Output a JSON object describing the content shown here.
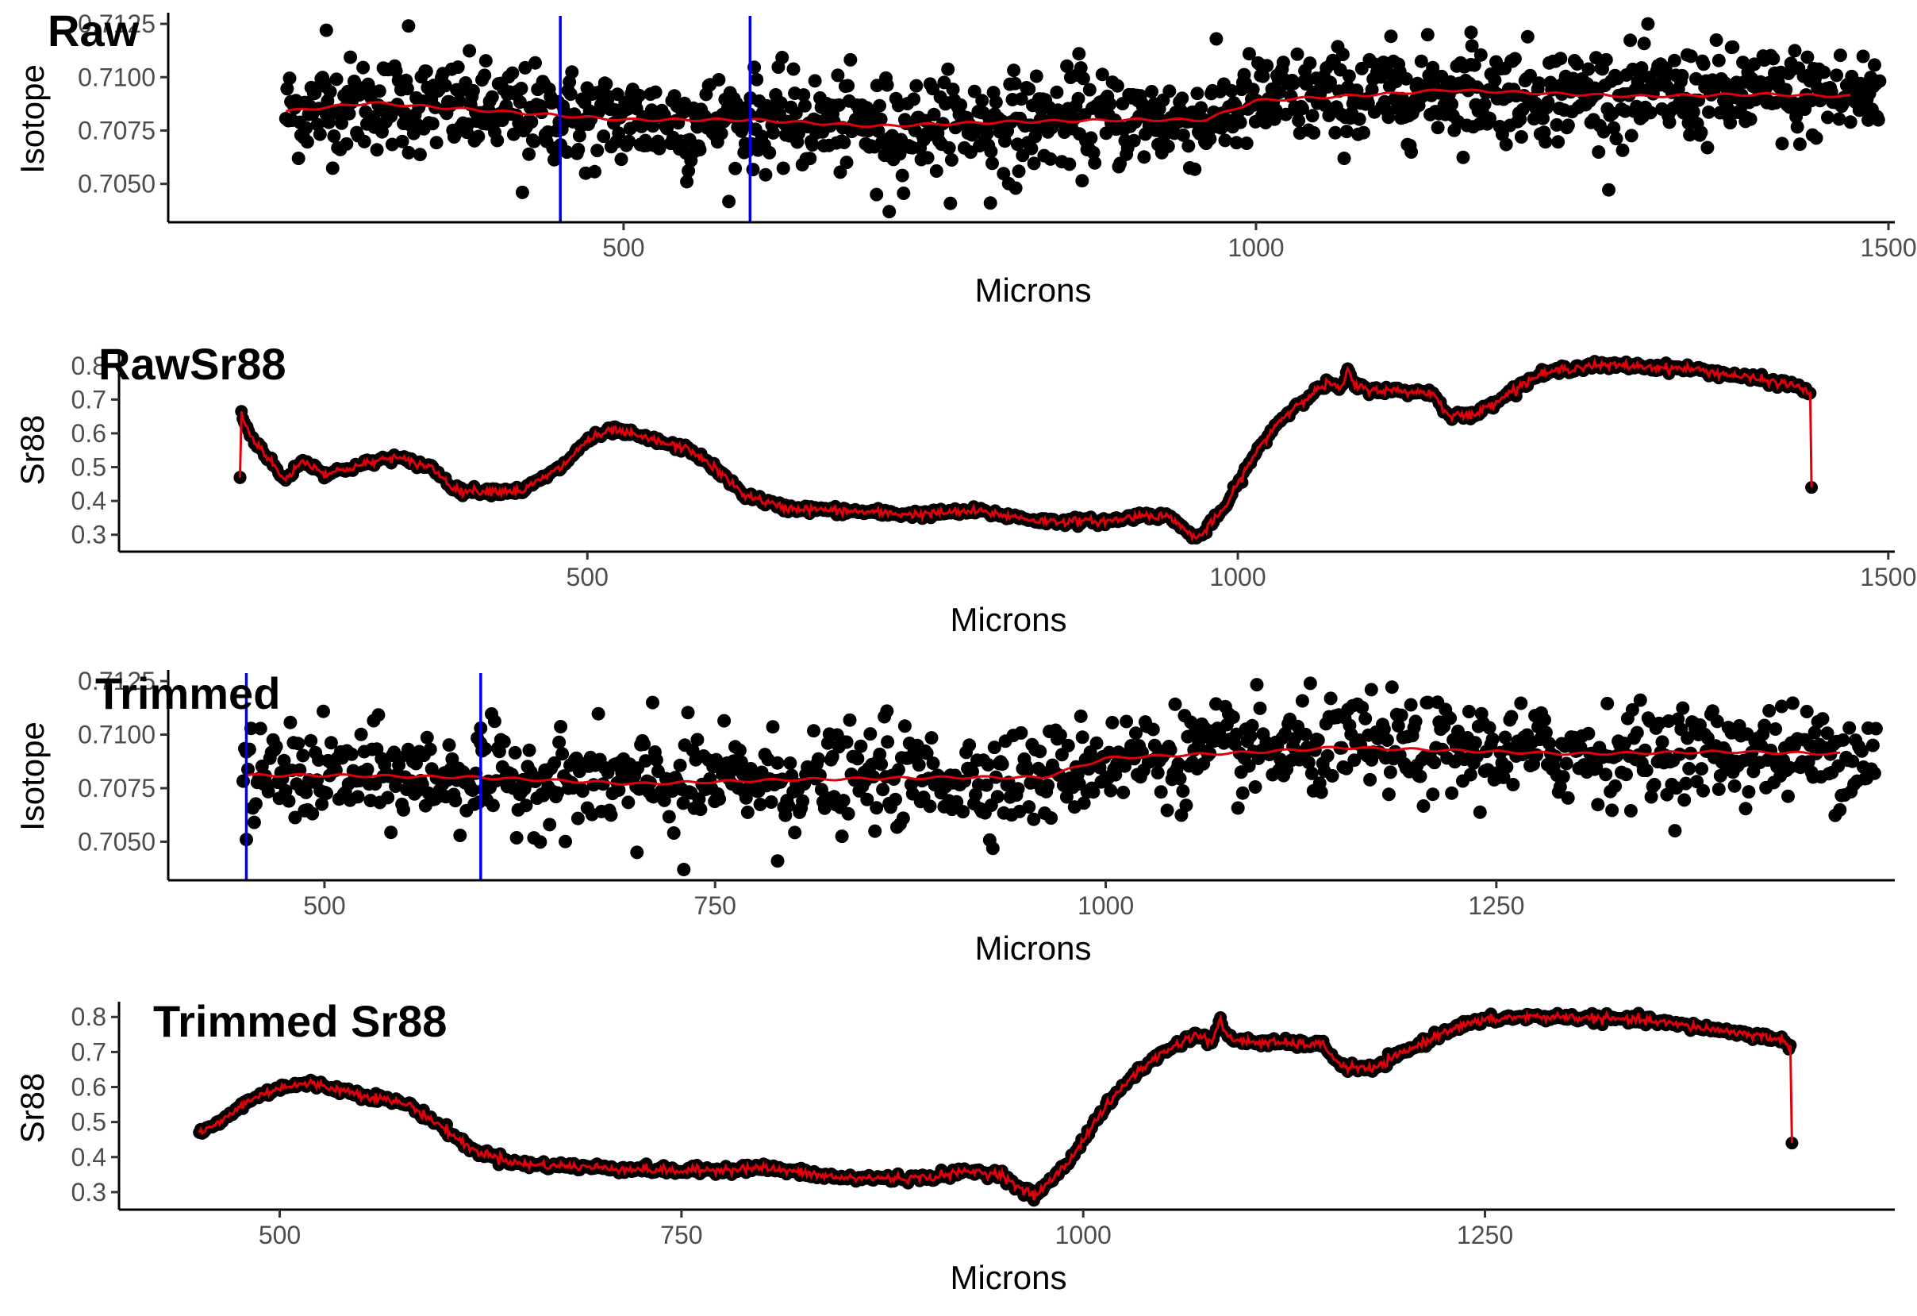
{
  "chart_data": [
    {
      "type": "scatter",
      "title": "Raw",
      "xlabel": "Microns",
      "ylabel": "Isotope",
      "xlim": [
        140,
        1505
      ],
      "ylim": [
        0.7032,
        0.7128
      ],
      "x_ticks": [
        500,
        1000,
        1500
      ],
      "x_tick_labels": [
        "500",
        "1000",
        "1500"
      ],
      "y_ticks": [
        0.705,
        0.7075,
        0.71,
        0.7125
      ],
      "y_tick_labels": [
        "0.7050",
        "0.7075",
        "0.7100",
        "0.7125"
      ],
      "grid": false,
      "legend": "none",
      "vlines": [
        450,
        600
      ],
      "x_range": [
        233,
        1493
      ],
      "point_count": 1260,
      "trend": {
        "x": [
          233,
          300,
          400,
          500,
          600,
          700,
          800,
          900,
          960,
          1000,
          1100,
          1150,
          1200,
          1300,
          1400,
          1470
        ],
        "y": [
          0.7084,
          0.7088,
          0.7084,
          0.708,
          0.708,
          0.7077,
          0.7079,
          0.708,
          0.708,
          0.7089,
          0.7092,
          0.7094,
          0.7093,
          0.7091,
          0.7092,
          0.7091
        ]
      },
      "outliers": [
        {
          "x": 330,
          "y": 0.7124
        },
        {
          "x": 420,
          "y": 0.7046
        },
        {
          "x": 470,
          "y": 0.7055
        },
        {
          "x": 550,
          "y": 0.7051
        },
        {
          "x": 700,
          "y": 0.7045
        },
        {
          "x": 710,
          "y": 0.7037
        },
        {
          "x": 790,
          "y": 0.7041
        },
        {
          "x": 810,
          "y": 0.7048
        },
        {
          "x": 1170,
          "y": 0.7121
        },
        {
          "x": 1085,
          "y": 0.7074
        },
        {
          "x": 860,
          "y": 0.7111
        },
        {
          "x": 265,
          "y": 0.7122
        }
      ]
    },
    {
      "type": "line",
      "title": "RawSr88",
      "xlabel": "Microns",
      "ylabel": "Sr88",
      "xlim": [
        140,
        1505
      ],
      "ylim": [
        0.25,
        0.83
      ],
      "x_ticks": [
        500,
        1000,
        1500
      ],
      "x_tick_labels": [
        "500",
        "1000",
        "1500"
      ],
      "y_ticks": [
        0.3,
        0.4,
        0.5,
        0.6,
        0.7,
        0.8
      ],
      "y_tick_labels": [
        "0.3",
        "0.4",
        "0.5",
        "0.6",
        "0.7",
        "0.8"
      ],
      "grid": false,
      "legend": "none",
      "series": [
        {
          "x": [
            233,
            234,
            240,
            250,
            260,
            267,
            272,
            280,
            300,
            320,
            350,
            380,
            400,
            420,
            450,
            480,
            500,
            520,
            550,
            580,
            600,
            620,
            650,
            700,
            750,
            800,
            850,
            900,
            930,
            950,
            960,
            970,
            990,
            1010,
            1030,
            1050,
            1070,
            1080,
            1085,
            1090,
            1100,
            1150,
            1160,
            1180,
            1200,
            1230,
            1250,
            1270,
            1300,
            1350,
            1400,
            1430,
            1440,
            1441
          ],
          "y": [
            0.47,
            0.66,
            0.6,
            0.55,
            0.5,
            0.46,
            0.48,
            0.52,
            0.48,
            0.5,
            0.53,
            0.5,
            0.43,
            0.43,
            0.43,
            0.5,
            0.58,
            0.61,
            0.58,
            0.55,
            0.49,
            0.42,
            0.38,
            0.37,
            0.36,
            0.37,
            0.34,
            0.34,
            0.36,
            0.35,
            0.31,
            0.29,
            0.38,
            0.52,
            0.63,
            0.7,
            0.75,
            0.73,
            0.79,
            0.74,
            0.73,
            0.72,
            0.66,
            0.65,
            0.7,
            0.77,
            0.79,
            0.8,
            0.8,
            0.79,
            0.76,
            0.74,
            0.72,
            0.44
          ]
        }
      ]
    },
    {
      "type": "scatter",
      "title": "Trimmed",
      "xlabel": "Microns",
      "ylabel": "Isotope",
      "xlim": [
        400,
        1505
      ],
      "ylim": [
        0.7032,
        0.7128
      ],
      "x_ticks": [
        500,
        750,
        1000,
        1250
      ],
      "x_tick_labels": [
        "500",
        "750",
        "1000",
        "1250"
      ],
      "y_ticks": [
        0.705,
        0.7075,
        0.71,
        0.7125
      ],
      "y_tick_labels": [
        "0.7050",
        "0.7075",
        "0.7100",
        "0.7125"
      ],
      "grid": false,
      "legend": "none",
      "vlines": [
        450,
        600
      ],
      "x_range": [
        448,
        1493
      ],
      "point_count": 1040,
      "trend": {
        "x": [
          450,
          500,
          600,
          700,
          800,
          900,
          960,
          1000,
          1100,
          1150,
          1200,
          1300,
          1400,
          1470
        ],
        "y": [
          0.7081,
          0.7081,
          0.708,
          0.7077,
          0.7079,
          0.708,
          0.708,
          0.7089,
          0.7092,
          0.7094,
          0.7093,
          0.7091,
          0.7092,
          0.7091
        ]
      },
      "outliers": [
        {
          "x": 450,
          "y": 0.7051
        },
        {
          "x": 730,
          "y": 0.7037
        },
        {
          "x": 700,
          "y": 0.7045
        },
        {
          "x": 790,
          "y": 0.7041
        },
        {
          "x": 1170,
          "y": 0.7121
        },
        {
          "x": 860,
          "y": 0.7111
        },
        {
          "x": 710,
          "y": 0.7115
        },
        {
          "x": 600,
          "y": 0.7103
        }
      ]
    },
    {
      "type": "line",
      "title": "Trimmed Sr88",
      "xlabel": "Microns",
      "ylabel": "Sr88",
      "xlim": [
        400,
        1505
      ],
      "ylim": [
        0.25,
        0.83
      ],
      "x_ticks": [
        500,
        750,
        1000,
        1250
      ],
      "x_tick_labels": [
        "500",
        "750",
        "1000",
        "1250"
      ],
      "y_ticks": [
        0.3,
        0.4,
        0.5,
        0.6,
        0.7,
        0.8
      ],
      "y_tick_labels": [
        "0.3",
        "0.4",
        "0.5",
        "0.6",
        "0.7",
        "0.8"
      ],
      "grid": false,
      "legend": "none",
      "series": [
        {
          "x": [
            450,
            460,
            480,
            500,
            520,
            550,
            580,
            600,
            620,
            650,
            700,
            750,
            800,
            850,
            900,
            930,
            950,
            960,
            970,
            990,
            1010,
            1030,
            1050,
            1070,
            1080,
            1085,
            1090,
            1100,
            1150,
            1160,
            1180,
            1200,
            1230,
            1250,
            1270,
            1300,
            1350,
            1400,
            1430,
            1440,
            1441
          ],
          "y": [
            0.47,
            0.49,
            0.56,
            0.6,
            0.61,
            0.58,
            0.55,
            0.49,
            0.42,
            0.38,
            0.37,
            0.36,
            0.37,
            0.34,
            0.34,
            0.36,
            0.35,
            0.31,
            0.29,
            0.38,
            0.52,
            0.63,
            0.7,
            0.75,
            0.73,
            0.79,
            0.74,
            0.73,
            0.72,
            0.66,
            0.65,
            0.7,
            0.77,
            0.79,
            0.8,
            0.8,
            0.79,
            0.76,
            0.74,
            0.72,
            0.44
          ]
        }
      ]
    }
  ],
  "colors": {
    "points": "#000000",
    "trend": "#e0000b",
    "vline": "#0000ee",
    "axis": "#000000",
    "tick_label": "#4d4d4d"
  }
}
